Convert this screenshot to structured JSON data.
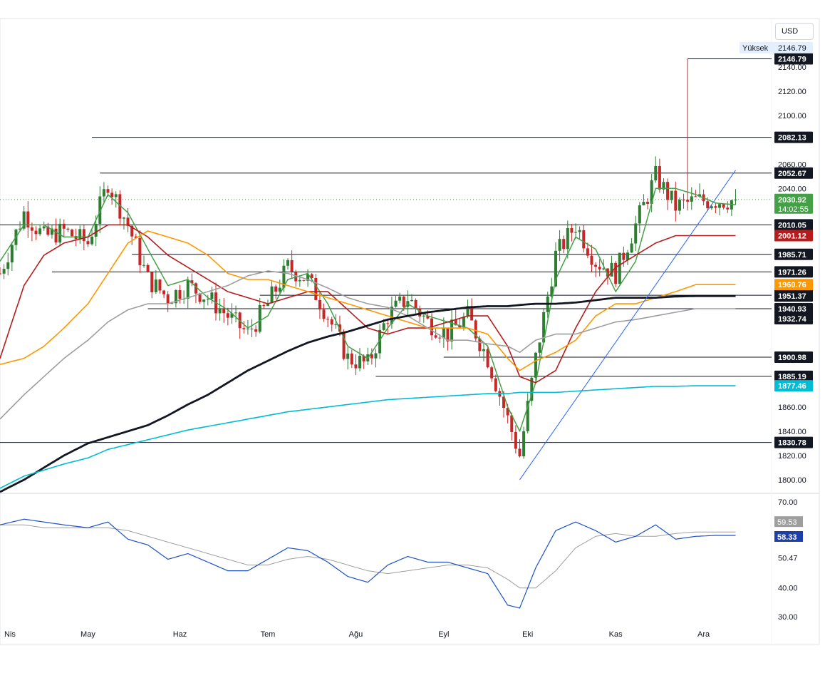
{
  "currency_label": "USD",
  "high_label": "Yüksek",
  "high_value": "2146.79",
  "chart_data": {
    "type": "line",
    "title": "",
    "xlabel": "",
    "ylabel": "",
    "ylim": [
      1790,
      2160
    ],
    "price_ticks": [
      "2140.00",
      "2120.00",
      "2100.00",
      "2060.00",
      "2040.00",
      "1860.00",
      "1840.00",
      "1820.00",
      "1800.00"
    ],
    "x_ticks": [
      {
        "x": 0,
        "label": "Nis"
      },
      {
        "x": 21,
        "label": "May"
      },
      {
        "x": 44,
        "label": "Haz"
      },
      {
        "x": 66,
        "label": "Tem"
      },
      {
        "x": 88,
        "label": "Ağu"
      },
      {
        "x": 110,
        "label": "Eyl"
      },
      {
        "x": 131,
        "label": "Eki"
      },
      {
        "x": 153,
        "label": "Kas"
      },
      {
        "x": 175,
        "label": "Ara"
      }
    ],
    "x_range": [
      -1,
      192
    ],
    "horizontal_levels": [
      {
        "value": 2146.79,
        "label": "2146.79",
        "x_from": 171
      },
      {
        "value": 2082.13,
        "label": "2082.13",
        "x_from": 22
      },
      {
        "value": 2052.67,
        "label": "2052.67",
        "x_from": 24
      },
      {
        "value": 2010.05,
        "label": "2010.05",
        "x_from": -1
      },
      {
        "value": 1985.71,
        "label": "1985.71",
        "x_from": 32
      },
      {
        "value": 1971.26,
        "label": "1971.26",
        "x_from": 12
      },
      {
        "value": 1951.99,
        "label": "1951.99",
        "x_from": 64
      },
      {
        "value": 1940.93,
        "label": "1940.93",
        "x_from": 36
      },
      {
        "value": 1900.98,
        "label": "1900.98",
        "x_from": 110
      },
      {
        "value": 1885.19,
        "label": "1885.19",
        "x_from": 93
      },
      {
        "value": 1830.78,
        "label": "1830.78",
        "x_from": -1
      }
    ],
    "trendline": {
      "x1": 129,
      "y1": 1800,
      "x2": 183,
      "y2": 2055
    },
    "last_price": {
      "value": 2030.92,
      "label": "2030.92",
      "countdown": "14:02:55"
    },
    "ma_labels": [
      {
        "value": 2026.52,
        "label": "2026.52",
        "color": "#43a047"
      },
      {
        "value": 2001.12,
        "label": "2001.12",
        "color": "#b71c1c"
      },
      {
        "value": 1960.76,
        "label": "1960.76",
        "color": "#ff9800"
      },
      {
        "value": 1951.37,
        "label": "1951.37",
        "color": "#131722"
      },
      {
        "value": 1932.74,
        "label": "1932.74",
        "color": "#131722"
      },
      {
        "value": 1877.46,
        "label": "1877.46",
        "color": "#00bcd4"
      }
    ],
    "anchors_x": [
      -1,
      5,
      10,
      15,
      21,
      26,
      31,
      36,
      41,
      46,
      51,
      56,
      61,
      66,
      71,
      76,
      81,
      86,
      91,
      96,
      101,
      106,
      111,
      116,
      121,
      126,
      129,
      133,
      138,
      143,
      148,
      153,
      158,
      163,
      168,
      173,
      178,
      183
    ],
    "candle_anchors": [
      1970,
      2020,
      2000,
      2005,
      1995,
      2045,
      2010,
      1965,
      1950,
      1960,
      1950,
      1935,
      1920,
      1945,
      1975,
      1965,
      1935,
      1900,
      1895,
      1935,
      1950,
      1930,
      1920,
      1935,
      1900,
      1850,
      1820,
      1900,
      1985,
      2010,
      1980,
      1970,
      2010,
      2050,
      2025,
      2030,
      2030,
      2030
    ],
    "series": [
      {
        "name": "",
        "color": "#43a047",
        "width": 1.5,
        "y": [
          1980,
          2010,
          2010,
          2000,
          2000,
          2035,
          2020,
          1990,
          1960,
          1965,
          1950,
          1940,
          1925,
          1935,
          1965,
          1970,
          1945,
          1910,
          1900,
          1925,
          1945,
          1935,
          1930,
          1925,
          1910,
          1860,
          1840,
          1880,
          1965,
          2000,
          1990,
          1955,
          1980,
          2040,
          2040,
          2035,
          2028,
          2026.52
        ]
      },
      {
        "name": "",
        "color": "#b71c1c",
        "width": 1.6,
        "y": [
          1900,
          1960,
          1985,
          1995,
          2000,
          2010,
          2010,
          2000,
          1985,
          1975,
          1965,
          1955,
          1950,
          1945,
          1950,
          1955,
          1955,
          1940,
          1925,
          1920,
          1925,
          1925,
          1930,
          1935,
          1935,
          1910,
          1885,
          1880,
          1890,
          1925,
          1955,
          1975,
          1985,
          1995,
          2001.12,
          2001.12,
          2001.12,
          2001.12
        ]
      },
      {
        "name": "",
        "color": "#ff9800",
        "width": 1.6,
        "y": [
          1895,
          1900,
          1910,
          1925,
          1945,
          1970,
          1995,
          2005,
          2000,
          1995,
          1985,
          1970,
          1965,
          1965,
          1960,
          1955,
          1950,
          1945,
          1940,
          1935,
          1930,
          1925,
          1925,
          1925,
          1920,
          1900,
          1890,
          1898,
          1905,
          1915,
          1935,
          1945,
          1945,
          1950,
          1955,
          1960.76,
          1960.76,
          1960.76
        ]
      },
      {
        "name": "",
        "color": "#9e9e9e",
        "width": 1.6,
        "y": [
          1850,
          1870,
          1885,
          1900,
          1915,
          1930,
          1940,
          1945,
          1945,
          1950,
          1955,
          1960,
          1968,
          1972,
          1970,
          1965,
          1958,
          1950,
          1945,
          1942,
          1935,
          1925,
          1915,
          1915,
          1912,
          1910,
          1905,
          1915,
          1920,
          1920,
          1925,
          1930,
          1932,
          1935,
          1938,
          1940.93,
          1940.93,
          1940.93
        ]
      },
      {
        "name": "",
        "color": "#131722",
        "width": 2.8,
        "y": [
          1790,
          1800,
          1810,
          1820,
          1830,
          1835,
          1840,
          1845,
          1853,
          1862,
          1870,
          1880,
          1890,
          1898,
          1906,
          1913,
          1918,
          1922,
          1927,
          1932,
          1935,
          1938,
          1940,
          1942,
          1943,
          1943,
          1944,
          1945,
          1945,
          1946,
          1948,
          1950,
          1950,
          1950,
          1951,
          1951.37,
          1951.37,
          1951.37
        ]
      },
      {
        "name": "",
        "color": "#00bcd4",
        "width": 1.6,
        "y": [
          1793,
          1803,
          1808,
          1813,
          1818,
          1825,
          1829,
          1833,
          1837,
          1841,
          1844,
          1847,
          1850,
          1853,
          1856,
          1858,
          1860,
          1862,
          1864,
          1866,
          1867,
          1868,
          1869,
          1870,
          1871,
          1871,
          1872,
          1872,
          1872,
          1873,
          1874,
          1875,
          1876,
          1877,
          1877,
          1877.46,
          1877.46,
          1877.46
        ]
      }
    ],
    "rsi": {
      "ylim": [
        28,
        72
      ],
      "ticks": [
        "70.00",
        "50.47",
        "40.00",
        "30.00"
      ],
      "value_label": "58.33",
      "ma_label": "59.53",
      "rsi_color": "#1e50c8",
      "ma_color": "#9e9e9e",
      "y": [
        62,
        64,
        63,
        62,
        61,
        63,
        57,
        55,
        50,
        52,
        49,
        46,
        46,
        50,
        54,
        53,
        49,
        44,
        42,
        48,
        51,
        49,
        49,
        47,
        45,
        34,
        33,
        47,
        60,
        63,
        60,
        56,
        58,
        62,
        57,
        58,
        58.33,
        58.33
      ],
      "ma_y": [
        62,
        62,
        61,
        61,
        61,
        61,
        60,
        58,
        56,
        54,
        52,
        50,
        48,
        48,
        50,
        51,
        50,
        48,
        46,
        45,
        46,
        47,
        48,
        48,
        47,
        43,
        40,
        40,
        46,
        54,
        58,
        59,
        58,
        58,
        59,
        59.53,
        59.53,
        59.53
      ]
    }
  }
}
